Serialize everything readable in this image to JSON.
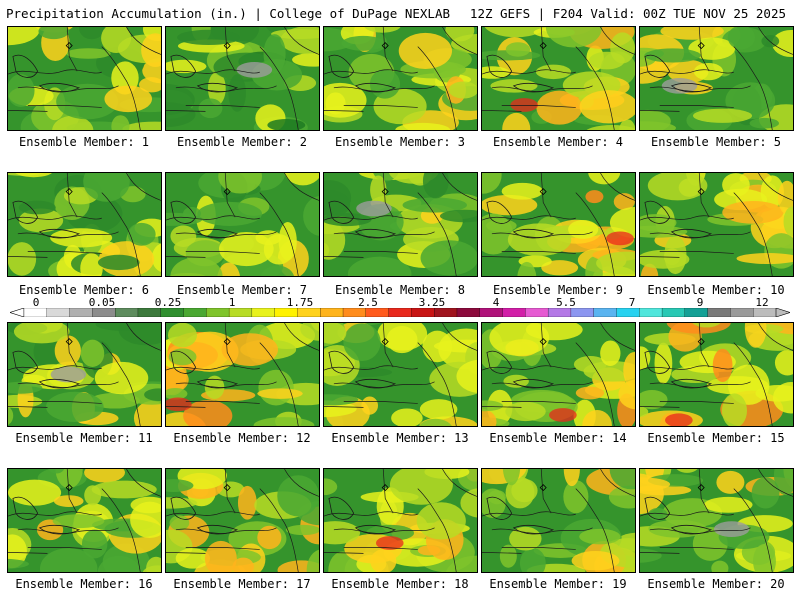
{
  "header": {
    "left_title": "Precipitation Accumulation (in.) | College of DuPage NEXLAB",
    "right_title": "12Z GEFS | F204 Valid: 00Z TUE NOV 25 2025"
  },
  "colorbar": {
    "labels": [
      "0",
      "0.05",
      "0.25",
      "1",
      "1.75",
      "2.5",
      "3.25",
      "4",
      "5.5",
      "7",
      "9",
      "12"
    ],
    "colors": [
      "#ffffff",
      "#d9d9d9",
      "#b0b0b0",
      "#8c8c8c",
      "#5e8c5e",
      "#3d7a3d",
      "#2f8f2f",
      "#4aa832",
      "#7fc42b",
      "#b7dc25",
      "#e8f21c",
      "#fff200",
      "#ffd21c",
      "#ffb41c",
      "#ff8c1c",
      "#ff5a1c",
      "#e8281c",
      "#c81414",
      "#a0141e",
      "#8c0a3c",
      "#b0127a",
      "#d21ea8",
      "#e65ad2",
      "#b478e6",
      "#8c96f0",
      "#5ab4f0",
      "#28d2f0",
      "#50e6dc",
      "#28c8b4",
      "#14a096",
      "#7a7a7a",
      "#9a9a9a",
      "#bcbcbc"
    ]
  },
  "members": [
    {
      "label": "Ensemble Member: 1",
      "wet": 0.3
    },
    {
      "label": "Ensemble Member: 2",
      "wet": 0.15
    },
    {
      "label": "Ensemble Member: 3",
      "wet": 0.45
    },
    {
      "label": "Ensemble Member: 4",
      "wet": 0.6
    },
    {
      "label": "Ensemble Member: 5",
      "wet": 0.35
    },
    {
      "label": "Ensemble Member: 6",
      "wet": 0.2
    },
    {
      "label": "Ensemble Member: 7",
      "wet": 0.35
    },
    {
      "label": "Ensemble Member: 8",
      "wet": 0.25
    },
    {
      "label": "Ensemble Member: 9",
      "wet": 0.65
    },
    {
      "label": "Ensemble Member: 10",
      "wet": 0.55
    },
    {
      "label": "Ensemble Member: 11",
      "wet": 0.3
    },
    {
      "label": "Ensemble Member: 12",
      "wet": 0.6
    },
    {
      "label": "Ensemble Member: 13",
      "wet": 0.4
    },
    {
      "label": "Ensemble Member: 14",
      "wet": 0.65
    },
    {
      "label": "Ensemble Member: 15",
      "wet": 0.8
    },
    {
      "label": "Ensemble Member: 16",
      "wet": 0.4
    },
    {
      "label": "Ensemble Member: 17",
      "wet": 0.55
    },
    {
      "label": "Ensemble Member: 18",
      "wet": 0.6
    },
    {
      "label": "Ensemble Member: 19",
      "wet": 0.5
    },
    {
      "label": "Ensemble Member: 20",
      "wet": 0.4
    }
  ]
}
